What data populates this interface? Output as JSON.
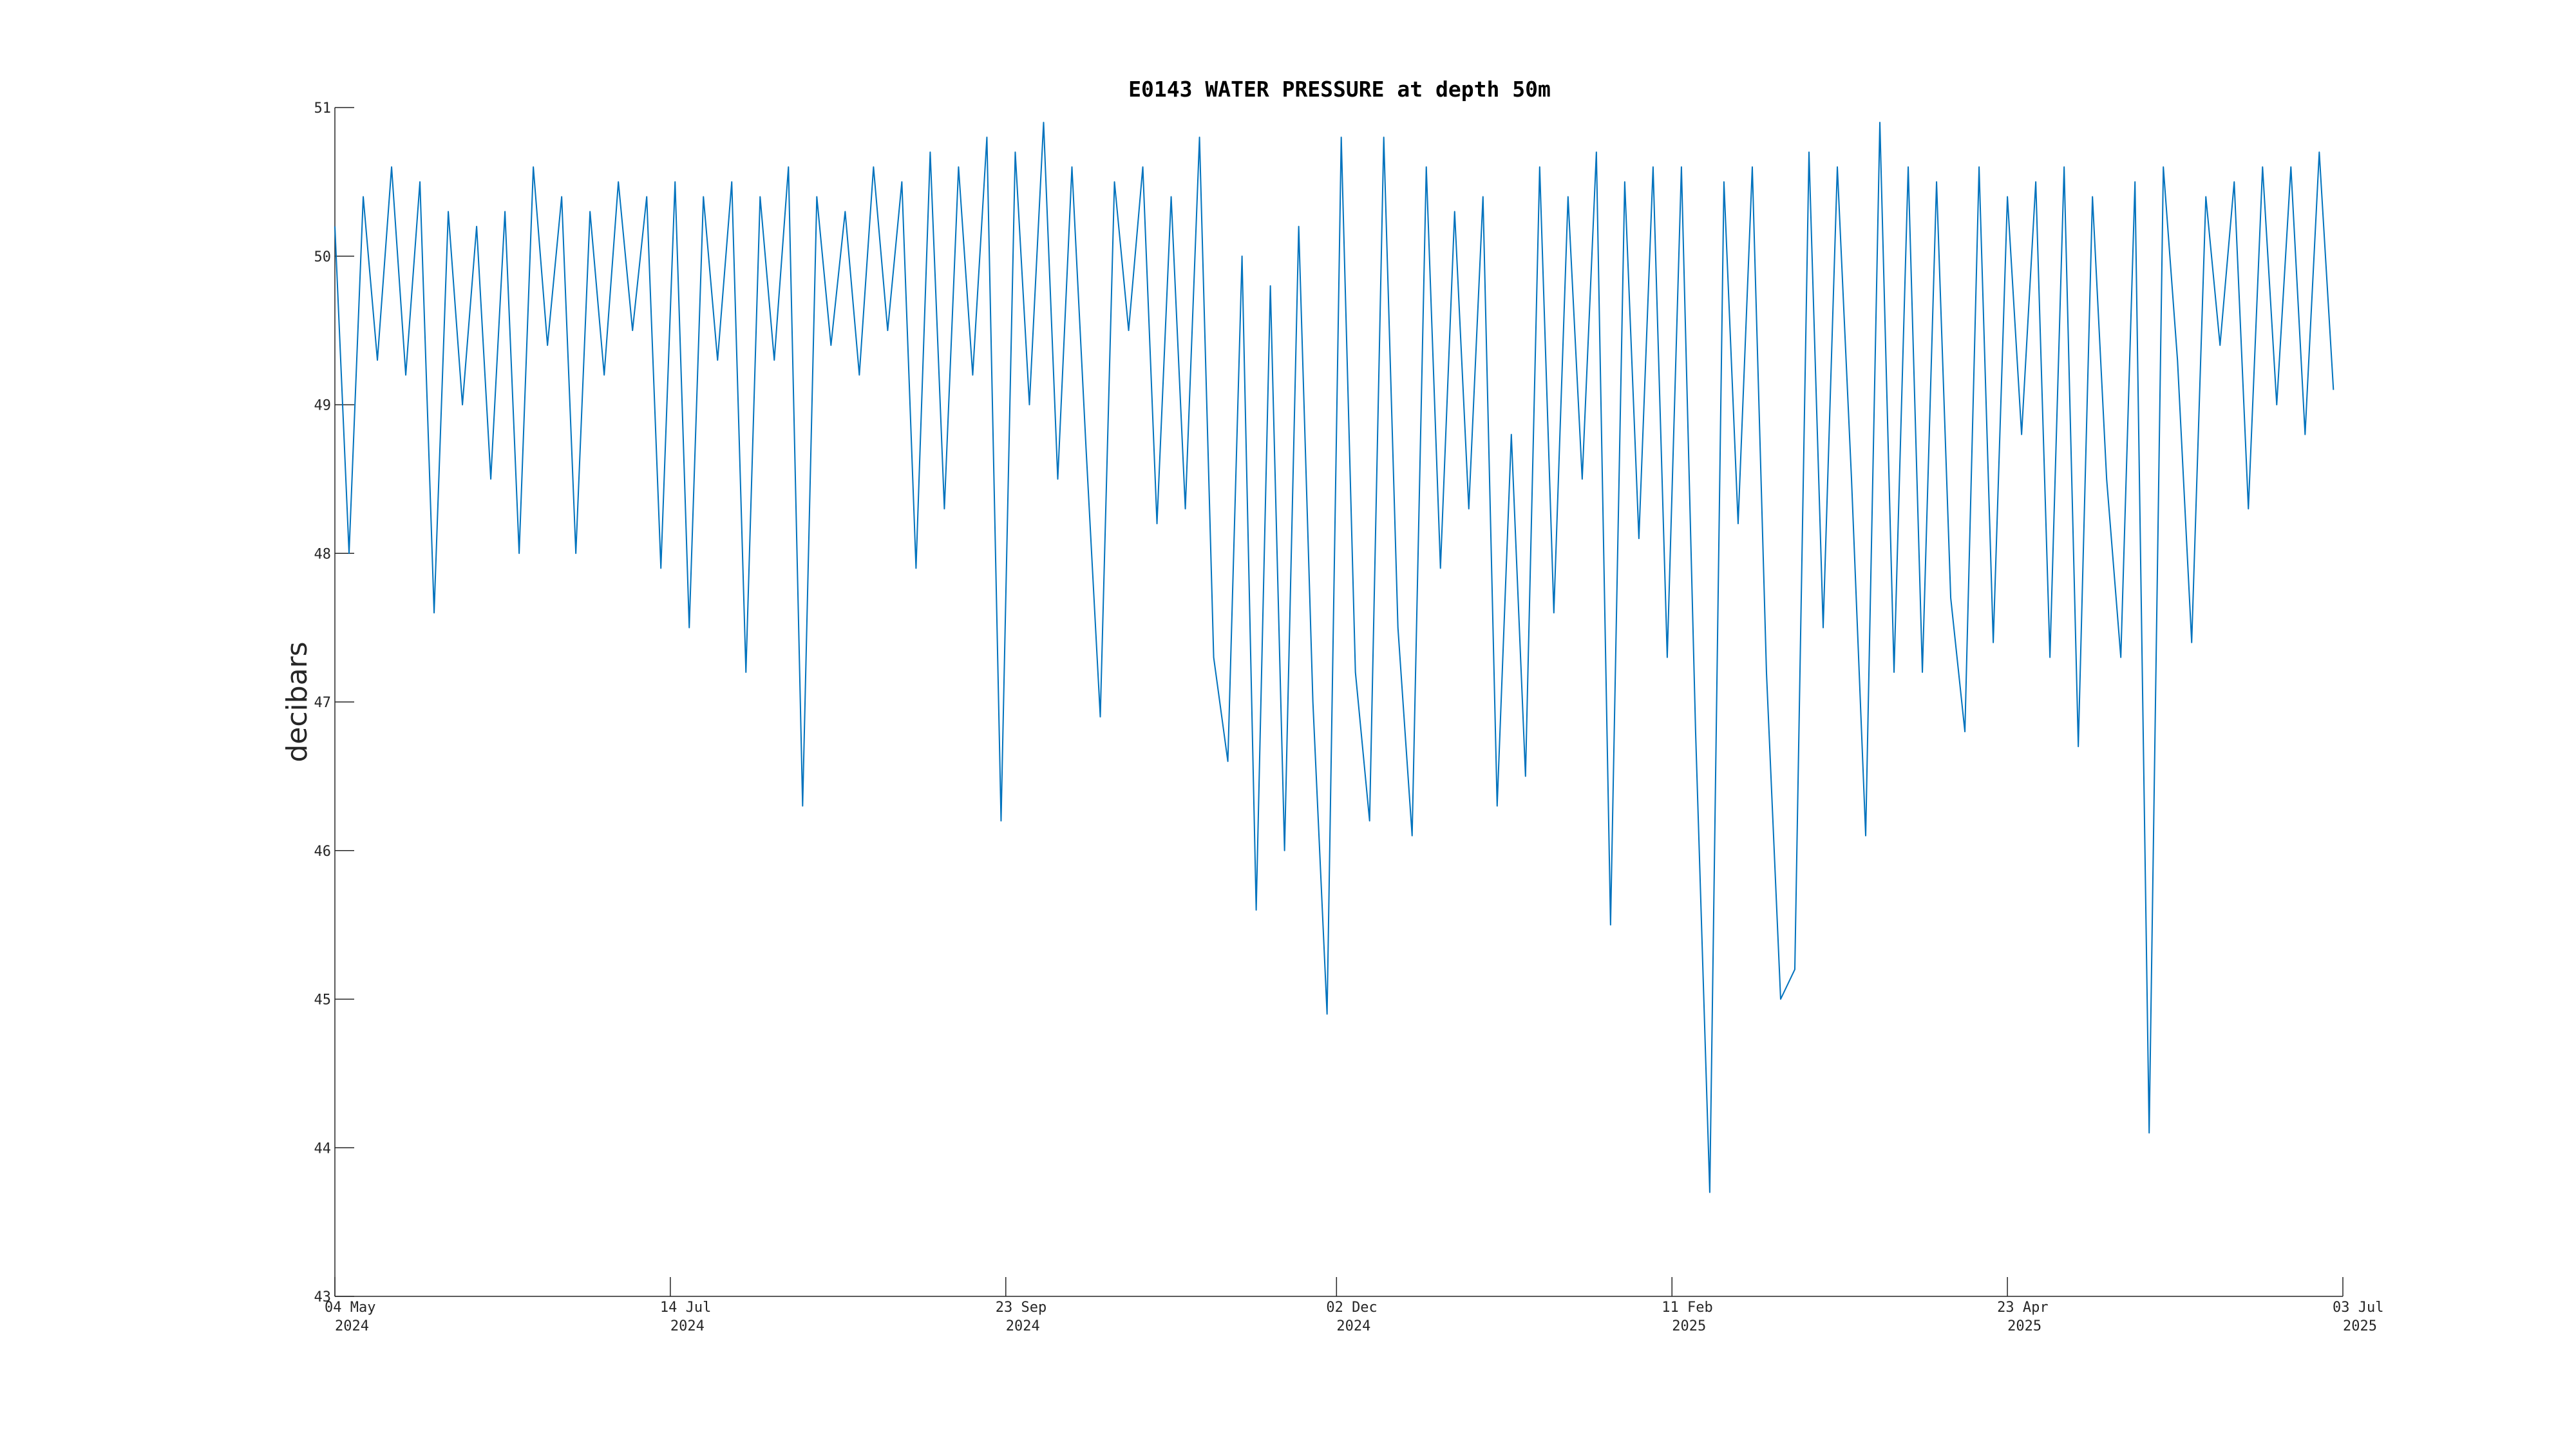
{
  "chart_data": {
    "type": "line",
    "title": "E0143 WATER PRESSURE at depth 50m",
    "y_label": "decibars",
    "xlim": [
      "2024-05-04",
      "2025-07-03"
    ],
    "xticks": [
      {
        "value": "2024-05-04",
        "label": [
          "04 May",
          "2024"
        ]
      },
      {
        "value": "2024-07-14",
        "label": [
          "14 Jul",
          "2024"
        ]
      },
      {
        "value": "2024-09-23",
        "label": [
          "23 Sep",
          "2024"
        ]
      },
      {
        "value": "2024-12-02",
        "label": [
          "02 Dec",
          "2024"
        ]
      },
      {
        "value": "2025-02-11",
        "label": [
          "11 Feb",
          "2025"
        ]
      },
      {
        "value": "2025-04-23",
        "label": [
          "23 Apr",
          "2025"
        ]
      },
      {
        "value": "2025-07-03",
        "label": [
          "03 Jul",
          "2025"
        ]
      }
    ],
    "ylim": [
      43,
      51
    ],
    "yticks": [
      43,
      44,
      45,
      46,
      47,
      48,
      49,
      50,
      51
    ],
    "grid": false,
    "x": [
      "2024-05-04",
      "2024-05-07",
      "2024-05-10",
      "2024-05-13",
      "2024-05-16",
      "2024-05-19",
      "2024-05-22",
      "2024-05-25",
      "2024-05-28",
      "2024-05-31",
      "2024-06-03",
      "2024-06-06",
      "2024-06-09",
      "2024-06-12",
      "2024-06-15",
      "2024-06-18",
      "2024-06-21",
      "2024-06-24",
      "2024-06-27",
      "2024-06-30",
      "2024-07-03",
      "2024-07-06",
      "2024-07-09",
      "2024-07-12",
      "2024-07-15",
      "2024-07-18",
      "2024-07-21",
      "2024-07-24",
      "2024-07-27",
      "2024-07-30",
      "2024-08-02",
      "2024-08-05",
      "2024-08-08",
      "2024-08-11",
      "2024-08-14",
      "2024-08-17",
      "2024-08-20",
      "2024-08-23",
      "2024-08-26",
      "2024-08-29",
      "2024-09-01",
      "2024-09-04",
      "2024-09-07",
      "2024-09-10",
      "2024-09-13",
      "2024-09-16",
      "2024-09-19",
      "2024-09-22",
      "2024-09-25",
      "2024-09-28",
      "2024-10-01",
      "2024-10-04",
      "2024-10-07",
      "2024-10-10",
      "2024-10-13",
      "2024-10-16",
      "2024-10-19",
      "2024-10-22",
      "2024-10-25",
      "2024-10-28",
      "2024-10-31",
      "2024-11-03",
      "2024-11-06",
      "2024-11-09",
      "2024-11-12",
      "2024-11-15",
      "2024-11-18",
      "2024-11-21",
      "2024-11-24",
      "2024-11-27",
      "2024-11-30",
      "2024-12-03",
      "2024-12-06",
      "2024-12-09",
      "2024-12-12",
      "2024-12-15",
      "2024-12-18",
      "2024-12-21",
      "2024-12-24",
      "2024-12-27",
      "2024-12-30",
      "2025-01-02",
      "2025-01-05",
      "2025-01-08",
      "2025-01-11",
      "2025-01-14",
      "2025-01-17",
      "2025-01-20",
      "2025-01-23",
      "2025-01-26",
      "2025-01-29",
      "2025-02-01",
      "2025-02-04",
      "2025-02-07",
      "2025-02-10",
      "2025-02-13",
      "2025-02-16",
      "2025-02-19",
      "2025-02-22",
      "2025-02-25",
      "2025-02-28",
      "2025-03-03",
      "2025-03-06",
      "2025-03-09",
      "2025-03-12",
      "2025-03-15",
      "2025-03-18",
      "2025-03-21",
      "2025-03-24",
      "2025-03-27",
      "2025-03-30",
      "2025-04-02",
      "2025-04-05",
      "2025-04-08",
      "2025-04-11",
      "2025-04-14",
      "2025-04-17",
      "2025-04-20",
      "2025-04-23",
      "2025-04-26",
      "2025-04-29",
      "2025-05-02",
      "2025-05-05",
      "2025-05-08",
      "2025-05-11",
      "2025-05-14",
      "2025-05-17",
      "2025-05-20",
      "2025-05-23",
      "2025-05-26",
      "2025-05-29",
      "2025-06-01",
      "2025-06-04",
      "2025-06-07",
      "2025-06-10",
      "2025-06-13",
      "2025-06-16",
      "2025-06-19",
      "2025-06-22",
      "2025-06-25",
      "2025-06-28",
      "2025-07-01"
    ],
    "color": "#0072bd",
    "values": [
      50.2,
      48.0,
      50.4,
      49.3,
      50.6,
      49.2,
      50.5,
      47.6,
      50.3,
      49.0,
      50.2,
      48.5,
      50.3,
      48.0,
      50.6,
      49.4,
      50.4,
      48.0,
      50.3,
      49.2,
      50.5,
      49.5,
      50.4,
      47.9,
      50.5,
      47.5,
      50.4,
      49.3,
      50.5,
      47.2,
      50.4,
      49.3,
      50.6,
      46.3,
      50.4,
      49.4,
      50.3,
      49.2,
      50.6,
      49.5,
      50.5,
      47.9,
      50.7,
      48.3,
      50.6,
      49.2,
      50.8,
      46.2,
      50.7,
      49.0,
      50.9,
      48.5,
      50.6,
      48.7,
      46.9,
      50.5,
      49.5,
      50.6,
      48.2,
      50.4,
      48.3,
      50.8,
      47.3,
      46.6,
      50.0,
      45.6,
      49.8,
      46.0,
      50.2,
      47.0,
      44.9,
      50.8,
      47.2,
      46.2,
      50.8,
      47.5,
      46.1,
      50.6,
      47.9,
      50.3,
      48.3,
      50.4,
      46.3,
      48.8,
      46.5,
      50.6,
      47.6,
      50.4,
      48.5,
      50.7,
      45.5,
      50.5,
      48.1,
      50.6,
      47.3,
      50.6,
      46.8,
      43.7,
      50.5,
      48.2,
      50.6,
      47.2,
      45.0,
      45.2,
      50.7,
      47.5,
      50.6,
      48.5,
      46.1,
      50.9,
      47.2,
      50.6,
      47.2,
      50.5,
      47.7,
      46.8,
      50.6,
      47.4,
      50.4,
      48.8,
      50.5,
      47.3,
      50.6,
      46.7,
      50.4,
      48.5,
      47.3,
      50.5,
      44.1,
      50.6,
      49.3,
      47.4,
      50.4,
      49.4,
      50.5,
      48.3,
      50.6,
      49.0,
      50.6,
      48.8,
      50.7,
      49.1
    ]
  }
}
